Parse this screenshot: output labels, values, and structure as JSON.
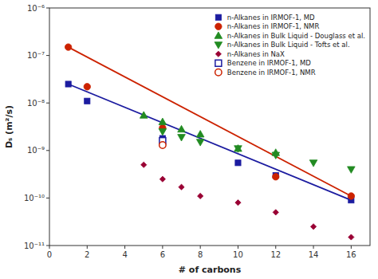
{
  "chart_data": {
    "type": "scatter",
    "xlabel": "# of carbons",
    "ylabel": "Dₛ (m²/s)",
    "log": "y",
    "grid": false,
    "legend": "upper right",
    "xlim": [
      0,
      17
    ],
    "ylim": [
      1e-11,
      1e-06
    ],
    "xticks": [
      0,
      2,
      4,
      6,
      8,
      10,
      12,
      14,
      16
    ],
    "yticks": [
      {
        "value": 1e-11,
        "label": "10⁻¹¹"
      },
      {
        "value": 1e-10,
        "label": "10⁻¹⁰"
      },
      {
        "value": 1e-09,
        "label": "10⁻⁹"
      },
      {
        "value": 1e-08,
        "label": "10⁻⁸"
      },
      {
        "value": 1e-07,
        "label": "10⁻⁷"
      },
      {
        "value": 1e-06,
        "label": "10⁻⁶"
      }
    ],
    "series": [
      {
        "type": "line",
        "color": "#1C1CA0",
        "line_style": "solid",
        "x": [
          1,
          16
        ],
        "values": [
          2.5e-08,
          9e-11
        ]
      },
      {
        "type": "line",
        "color": "#CC2200",
        "line_style": "solid",
        "x": [
          1,
          16
        ],
        "values": [
          1.5e-07,
          1.1e-10
        ]
      },
      {
        "type": "scatter",
        "name": "n-Alkanes in IRMOF-1, MD",
        "color": "#1C1CA0",
        "marker": "square",
        "x": [
          1,
          2,
          6,
          10,
          12,
          16
        ],
        "values": [
          2.5e-08,
          1.1e-08,
          1.8e-09,
          5.5e-10,
          3e-10,
          9e-11
        ]
      },
      {
        "type": "scatter",
        "name": "n-Alkanes in IRMOF-1, NMR",
        "color": "#CC2200",
        "marker": "circle",
        "x": [
          1,
          2,
          6,
          12,
          16
        ],
        "values": [
          1.5e-07,
          2.2e-08,
          3e-09,
          2.8e-10,
          1.1e-10
        ]
      },
      {
        "type": "scatter",
        "name": "n-Alkanes in Bulk Liquid - Douglass et al.",
        "color": "#228B22",
        "marker": "triangle-up",
        "x": [
          5,
          6,
          7,
          8,
          10,
          12
        ],
        "values": [
          5.5e-09,
          4e-09,
          2.8e-09,
          2.2e-09,
          1.1e-09,
          9e-10
        ]
      },
      {
        "type": "scatter",
        "name": "n-Alkanes in Bulk Liquid - Tofts et al.",
        "color": "#228B22",
        "marker": "triangle-down",
        "x": [
          6,
          7,
          8,
          10,
          12,
          14,
          16
        ],
        "values": [
          2.5e-09,
          1.9e-09,
          1.5e-09,
          1.1e-09,
          8e-10,
          5.5e-10,
          4e-10
        ]
      },
      {
        "type": "scatter",
        "name": "n-Alkanes in NaX",
        "color": "#990033",
        "marker": "diamond",
        "x": [
          5,
          6,
          7,
          8,
          10,
          12,
          14,
          16
        ],
        "values": [
          5e-10,
          2.5e-10,
          1.7e-10,
          1.1e-10,
          8e-11,
          5e-11,
          2.5e-11,
          1.5e-11
        ]
      },
      {
        "type": "scatter",
        "name": "Benzene in IRMOF-1, MD",
        "color": "#1C1CA0",
        "marker": "square-open",
        "x": [
          6
        ],
        "values": [
          1.6e-09
        ]
      },
      {
        "type": "scatter",
        "name": "Benzene in IRMOF-1, NMR",
        "color": "#CC2200",
        "marker": "circle-open",
        "x": [
          6
        ],
        "values": [
          1.3e-09
        ]
      }
    ]
  }
}
